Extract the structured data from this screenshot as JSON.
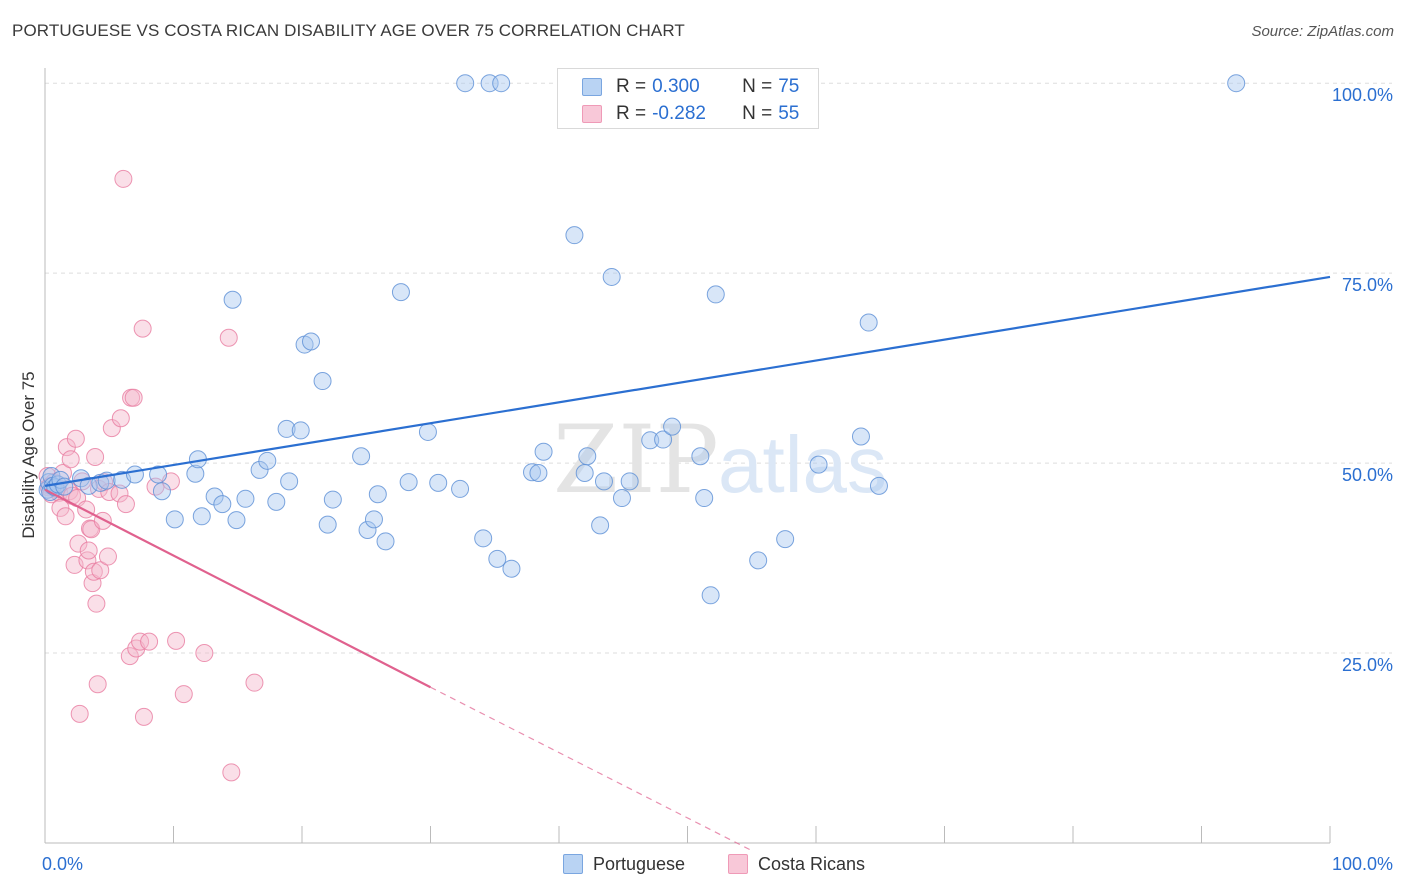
{
  "title": "PORTUGUESE VS COSTA RICAN DISABILITY AGE OVER 75 CORRELATION CHART",
  "source": "Source: ZipAtlas.com",
  "watermark": {
    "zip": "ZIP",
    "atlas": "atlas"
  },
  "legend_box": {
    "rows": [
      {
        "r_label": "R =",
        "r_value": "0.300",
        "n_label": "N =",
        "n_value": "75"
      },
      {
        "r_label": "R =",
        "r_value": "-0.282",
        "n_label": "N =",
        "n_value": "55"
      }
    ]
  },
  "bottom_legend": [
    "Portuguese",
    "Costa Ricans"
  ],
  "colors": {
    "portuguese_fill": "#a9c8ef",
    "portuguese_stroke": "#5b8fd6",
    "portuguese_line": "#2b6fd1",
    "costa_fill": "#f5b8cb",
    "costa_stroke": "#e87ca0",
    "costa_line": "#e0618e",
    "axis_label": "#2b6fd1",
    "grid": "#dddddd"
  },
  "chart_data": {
    "type": "scatter",
    "title": "PORTUGUESE VS COSTA RICAN DISABILITY AGE OVER 75 CORRELATION CHART",
    "xlabel": "",
    "ylabel": "Disability Age Over 75",
    "xlim": [
      0,
      100
    ],
    "ylim": [
      0,
      102
    ],
    "x_tick_labels": [
      "0.0%",
      "100.0%"
    ],
    "y_ticks": [
      25,
      50,
      75,
      100
    ],
    "y_tick_labels": [
      "25.0%",
      "50.0%",
      "75.0%",
      "100.0%"
    ],
    "grid": true,
    "legend_position": "top-center",
    "series": [
      {
        "name": "Portuguese",
        "r": 0.3,
        "n": 75,
        "trend": {
          "x": [
            0,
            100
          ],
          "y": [
            47.0,
            74.5
          ]
        },
        "points": [
          [
            0.2,
            46.5
          ],
          [
            0.3,
            47.5
          ],
          [
            0.4,
            46.2
          ],
          [
            0.5,
            48.3
          ],
          [
            0.6,
            47.0
          ],
          [
            0.8,
            46.8
          ],
          [
            1.0,
            47.2
          ],
          [
            1.2,
            47.8
          ],
          [
            1.5,
            46.9
          ],
          [
            2.8,
            48.0
          ],
          [
            3.4,
            47.0
          ],
          [
            4.3,
            47.4
          ],
          [
            4.8,
            47.7
          ],
          [
            6.0,
            47.8
          ],
          [
            7.0,
            48.5
          ],
          [
            8.8,
            48.5
          ],
          [
            9.1,
            46.3
          ],
          [
            10.1,
            42.6
          ],
          [
            11.7,
            48.6
          ],
          [
            11.9,
            50.5
          ],
          [
            12.2,
            43.0
          ],
          [
            13.2,
            45.6
          ],
          [
            13.8,
            44.6
          ],
          [
            14.6,
            71.5
          ],
          [
            14.9,
            42.5
          ],
          [
            15.6,
            45.3
          ],
          [
            16.7,
            49.1
          ],
          [
            17.3,
            50.3
          ],
          [
            18.0,
            44.9
          ],
          [
            18.8,
            54.5
          ],
          [
            19.0,
            47.6
          ],
          [
            19.9,
            54.3
          ],
          [
            20.2,
            65.6
          ],
          [
            20.7,
            66.0
          ],
          [
            21.6,
            60.8
          ],
          [
            22.0,
            41.9
          ],
          [
            22.4,
            45.2
          ],
          [
            24.6,
            50.9
          ],
          [
            25.1,
            41.2
          ],
          [
            25.6,
            42.6
          ],
          [
            25.9,
            45.9
          ],
          [
            26.5,
            39.7
          ],
          [
            27.7,
            72.5
          ],
          [
            28.3,
            47.5
          ],
          [
            29.8,
            54.1
          ],
          [
            30.6,
            47.4
          ],
          [
            32.3,
            46.6
          ],
          [
            32.7,
            100
          ],
          [
            34.1,
            40.1
          ],
          [
            34.6,
            100
          ],
          [
            35.2,
            37.4
          ],
          [
            35.5,
            100
          ],
          [
            36.3,
            36.1
          ],
          [
            37.9,
            48.8
          ],
          [
            38.4,
            48.7
          ],
          [
            38.8,
            51.5
          ],
          [
            41.2,
            80.0
          ],
          [
            42.0,
            48.7
          ],
          [
            42.2,
            50.9
          ],
          [
            43.2,
            41.8
          ],
          [
            43.5,
            47.6
          ],
          [
            44.1,
            74.5
          ],
          [
            44.9,
            45.4
          ],
          [
            45.5,
            47.6
          ],
          [
            47.1,
            53.0
          ],
          [
            48.1,
            53.1
          ],
          [
            48.8,
            54.8
          ],
          [
            51.0,
            50.9
          ],
          [
            51.3,
            45.4
          ],
          [
            51.8,
            32.6
          ],
          [
            52.2,
            72.2
          ],
          [
            55.5,
            37.2
          ],
          [
            57.6,
            40.0
          ],
          [
            60.2,
            49.8
          ],
          [
            63.5,
            53.5
          ],
          [
            64.1,
            68.5
          ],
          [
            64.9,
            47.0
          ],
          [
            92.7,
            100
          ]
        ]
      },
      {
        "name": "Costa Ricans",
        "r": -0.282,
        "n": 55,
        "trend": {
          "x": [
            0,
            30
          ],
          "y": [
            46.5,
            20.5
          ]
        },
        "trend_dashed": {
          "x": [
            30,
            55
          ],
          "y": [
            20.5,
            -1
          ]
        },
        "points": [
          [
            0.2,
            48.3
          ],
          [
            0.3,
            46.8
          ],
          [
            0.4,
            47.0
          ],
          [
            0.5,
            45.9
          ],
          [
            0.7,
            47.5
          ],
          [
            0.9,
            46.6
          ],
          [
            1.1,
            46.1
          ],
          [
            1.2,
            44.1
          ],
          [
            1.4,
            48.7
          ],
          [
            1.6,
            43.0
          ],
          [
            1.7,
            52.1
          ],
          [
            1.9,
            46.3
          ],
          [
            2.0,
            50.5
          ],
          [
            2.1,
            45.7
          ],
          [
            2.3,
            36.6
          ],
          [
            2.4,
            53.2
          ],
          [
            2.5,
            45.4
          ],
          [
            2.6,
            39.4
          ],
          [
            2.7,
            17.0
          ],
          [
            2.9,
            47.6
          ],
          [
            3.2,
            43.9
          ],
          [
            3.3,
            37.2
          ],
          [
            3.4,
            38.5
          ],
          [
            3.5,
            41.4
          ],
          [
            3.6,
            41.3
          ],
          [
            3.7,
            34.2
          ],
          [
            3.8,
            35.7
          ],
          [
            3.9,
            50.8
          ],
          [
            4.0,
            31.5
          ],
          [
            4.1,
            20.9
          ],
          [
            4.2,
            46.6
          ],
          [
            4.3,
            35.9
          ],
          [
            4.5,
            42.4
          ],
          [
            4.6,
            47.5
          ],
          [
            4.9,
            37.7
          ],
          [
            5.0,
            46.2
          ],
          [
            5.2,
            54.6
          ],
          [
            5.8,
            46.0
          ],
          [
            5.9,
            55.9
          ],
          [
            6.1,
            87.4
          ],
          [
            6.3,
            44.6
          ],
          [
            6.6,
            24.6
          ],
          [
            6.7,
            58.6
          ],
          [
            6.9,
            58.6
          ],
          [
            7.1,
            25.6
          ],
          [
            7.4,
            26.5
          ],
          [
            7.6,
            67.7
          ],
          [
            7.7,
            16.6
          ],
          [
            8.1,
            26.5
          ],
          [
            8.6,
            46.9
          ],
          [
            9.8,
            47.6
          ],
          [
            10.2,
            26.6
          ],
          [
            10.8,
            19.6
          ],
          [
            12.4,
            25.0
          ],
          [
            14.3,
            66.5
          ],
          [
            14.5,
            9.3
          ],
          [
            16.3,
            21.1
          ]
        ]
      }
    ]
  }
}
